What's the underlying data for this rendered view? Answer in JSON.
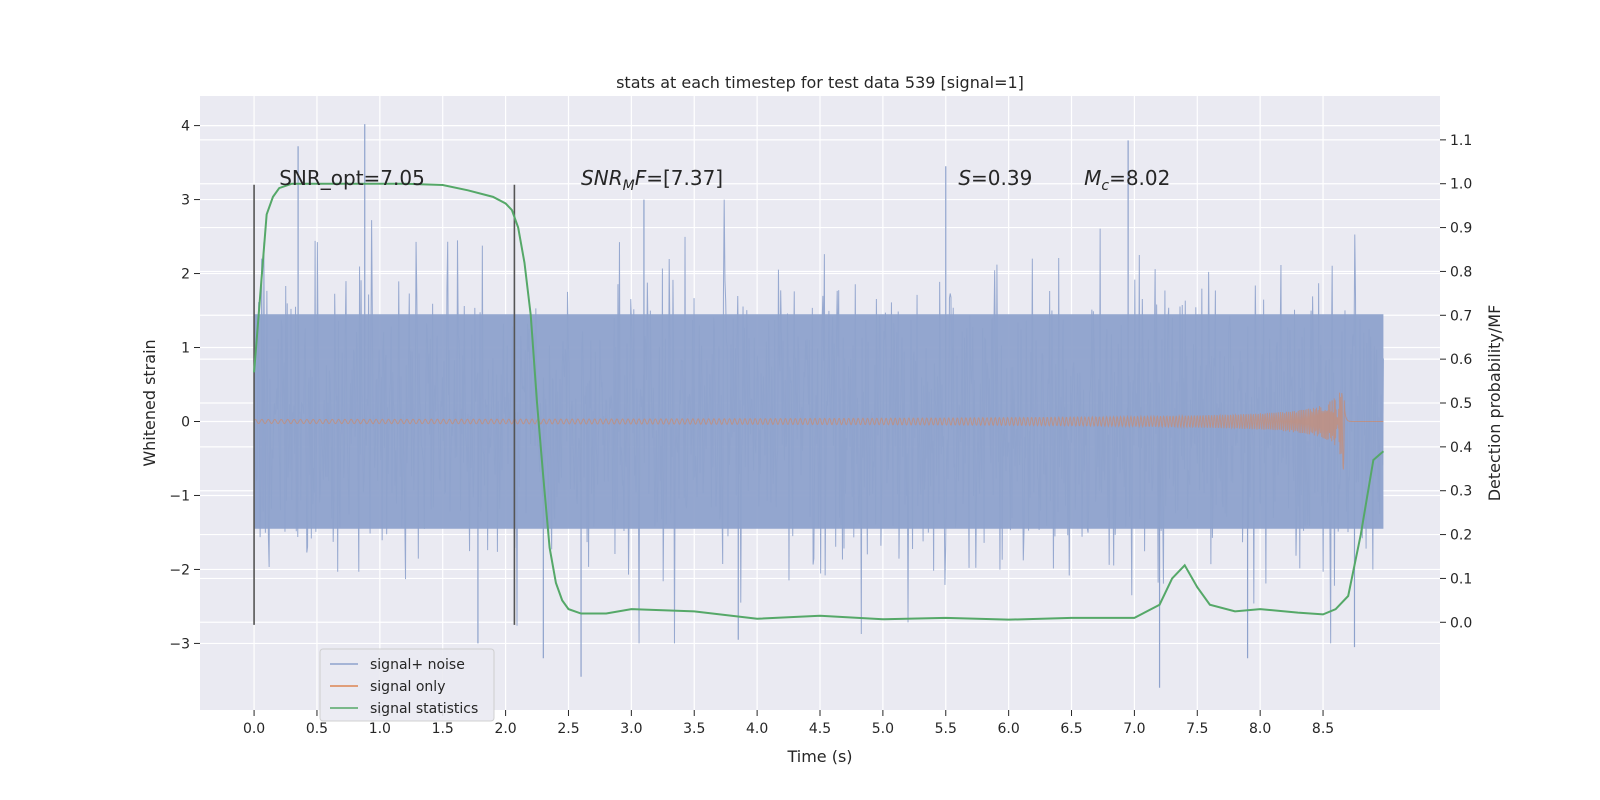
{
  "chart_data": {
    "type": "line",
    "title": "stats at each timestep for test data 539 [signal=1]",
    "xlabel": "Time (s)",
    "ylabel_left": "Whitened strain",
    "ylabel_right": "Detection probability/MF",
    "xlim": [
      -0.43,
      9.43
    ],
    "ylim_left": [
      -3.9,
      4.4
    ],
    "ylim_right": [
      -0.2,
      1.2
    ],
    "x_ticks": [
      "0.0",
      "0.5",
      "1.0",
      "1.5",
      "2.0",
      "2.5",
      "3.0",
      "3.5",
      "4.0",
      "4.5",
      "5.0",
      "5.5",
      "6.0",
      "6.5",
      "7.0",
      "7.5",
      "8.0",
      "8.5"
    ],
    "y_left_ticks": [
      "−3",
      "−2",
      "−1",
      "0",
      "1",
      "2",
      "3",
      "4"
    ],
    "y_right_ticks": [
      "0.0",
      "0.1",
      "0.2",
      "0.3",
      "0.4",
      "0.5",
      "0.6",
      "0.7",
      "0.8",
      "0.9",
      "1.0",
      "1.1"
    ],
    "grid": true,
    "legend_placement": "lower-left",
    "colors": {
      "background": "#eaeaf2",
      "noise": "#8ea2cc",
      "signal": "#dd8452",
      "stats": "#55a868",
      "marker": "#555555"
    },
    "annotations": [
      {
        "kind": "plain",
        "text": "SNR_opt=7.05",
        "x": 0.2
      },
      {
        "kind": "snrmf",
        "base": "SNR",
        "sub": "M",
        "rest": "F=[7.37]",
        "x": 2.6
      },
      {
        "kind": "italic",
        "base": "S",
        "rest": "=0.39",
        "x": 5.6
      },
      {
        "kind": "mc",
        "base": "M",
        "sub": "c",
        "rest": "=8.02",
        "x": 6.6
      }
    ],
    "annotation_y_left": 3.2,
    "vertical_markers": [
      {
        "x": 0.0,
        "y_range": [
          -2.75,
          3.2
        ]
      },
      {
        "x": 2.07,
        "y_range": [
          -2.75,
          3.2
        ]
      }
    ],
    "series": [
      {
        "name": "signal+ noise",
        "kind": "noise",
        "x_range": [
          0.0,
          8.98
        ],
        "envelope": [
          -1.45,
          1.45
        ],
        "spike_extremes": [
          [
            0.35,
            3.72
          ],
          [
            0.88,
            4.02
          ],
          [
            1.78,
            -3.0
          ],
          [
            2.3,
            -3.2
          ],
          [
            2.6,
            -3.45
          ],
          [
            3.1,
            3.0
          ],
          [
            3.85,
            -2.95
          ],
          [
            5.5,
            3.45
          ],
          [
            6.95,
            3.8
          ],
          [
            7.2,
            -3.6
          ],
          [
            7.9,
            -3.2
          ],
          [
            8.75,
            -3.05
          ]
        ]
      },
      {
        "name": "signal only",
        "kind": "chirp",
        "x_range": [
          0.0,
          8.98
        ],
        "merger_time": 8.67,
        "peak_amplitude": 0.78
      },
      {
        "name": "signal statistics",
        "kind": "stats",
        "axis": "right",
        "x": [
          0.0,
          0.05,
          0.1,
          0.15,
          0.2,
          0.3,
          0.5,
          0.8,
          1.2,
          1.5,
          1.7,
          1.9,
          2.0,
          2.05,
          2.1,
          2.15,
          2.2,
          2.25,
          2.3,
          2.35,
          2.4,
          2.45,
          2.5,
          2.6,
          2.8,
          3.0,
          3.5,
          4.0,
          4.5,
          5.0,
          5.5,
          6.0,
          6.5,
          7.0,
          7.2,
          7.3,
          7.4,
          7.5,
          7.6,
          7.8,
          8.0,
          8.3,
          8.5,
          8.6,
          8.7,
          8.8,
          8.9,
          8.98
        ],
        "values": [
          0.57,
          0.75,
          0.93,
          0.97,
          0.99,
          1.0,
          1.0,
          1.0,
          1.0,
          0.997,
          0.985,
          0.97,
          0.955,
          0.94,
          0.9,
          0.82,
          0.7,
          0.5,
          0.33,
          0.17,
          0.09,
          0.05,
          0.03,
          0.02,
          0.02,
          0.03,
          0.025,
          0.008,
          0.015,
          0.007,
          0.01,
          0.006,
          0.01,
          0.01,
          0.04,
          0.1,
          0.13,
          0.08,
          0.04,
          0.025,
          0.03,
          0.022,
          0.018,
          0.03,
          0.06,
          0.2,
          0.37,
          0.39
        ]
      }
    ]
  }
}
